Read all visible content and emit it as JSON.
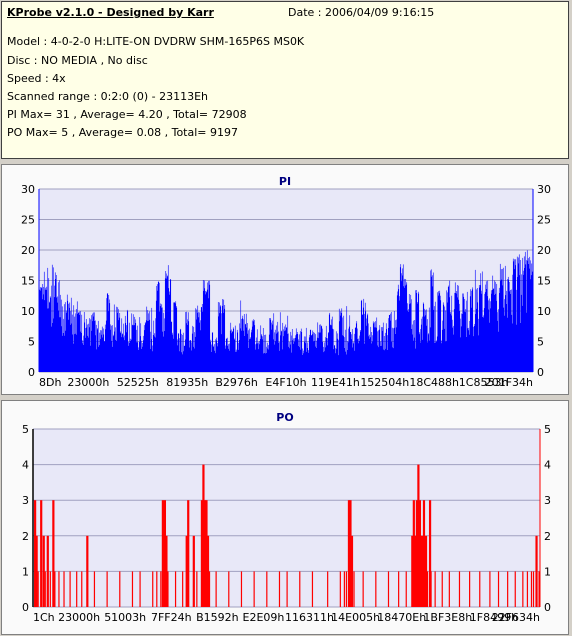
{
  "info": {
    "title": "KProbe v2.1.0 - Designed by Karr",
    "date": "Date : 2006/04/09 9:16:15",
    "lines": [
      "Model : 4-0-2-0 H:LITE-ON DVDRW SHM-165P6S MS0K",
      "Disc : NO MEDIA , No disc",
      "Speed : 4x",
      "Scanned range : 0:2:0 (0) - 23113Eh",
      "PI Max= 31 , Average= 4.20 , Total= 72908",
      "PO Max= 5 , Average= 0.08 , Total= 9197"
    ]
  },
  "colors": {
    "pi": "#0000ff",
    "po": "#ff0000",
    "plot_bg": "#e8e8f8",
    "grid": "#a0a0c0",
    "title": "#000080"
  },
  "chart_data": [
    {
      "type": "bar",
      "title": "PI",
      "ylim": [
        0,
        30
      ],
      "yticks": [
        0,
        5,
        10,
        15,
        20,
        25,
        30
      ],
      "x_tick_labels": [
        "8Dh",
        "23000h",
        "52525h",
        "81935h",
        "B2976h",
        "E4F10h",
        "119E41h",
        "152504h",
        "18C488h",
        "1C8553h",
        "201F34h"
      ],
      "grid": true,
      "max": 31,
      "profile": [
        [
          0,
          9
        ],
        [
          2,
          13
        ],
        [
          4,
          11
        ],
        [
          6,
          8
        ],
        [
          9,
          7
        ],
        [
          12,
          6
        ],
        [
          15,
          6
        ],
        [
          18,
          7
        ],
        [
          21,
          6
        ],
        [
          23,
          6
        ],
        [
          25,
          8
        ],
        [
          26,
          12
        ],
        [
          27,
          7
        ],
        [
          29,
          5
        ],
        [
          32,
          6
        ],
        [
          33,
          8
        ],
        [
          34,
          5
        ],
        [
          37,
          5
        ],
        [
          40,
          6
        ],
        [
          42,
          7
        ],
        [
          44,
          5
        ],
        [
          46,
          5
        ],
        [
          48,
          6
        ],
        [
          51,
          5
        ],
        [
          53,
          5
        ],
        [
          56,
          5
        ],
        [
          59,
          5
        ],
        [
          62,
          5
        ],
        [
          65,
          6
        ],
        [
          68,
          5
        ],
        [
          70,
          6
        ],
        [
          72,
          7
        ],
        [
          73,
          10
        ],
        [
          74,
          7
        ],
        [
          76,
          6
        ],
        [
          78,
          7
        ],
        [
          80,
          8
        ],
        [
          82,
          8
        ],
        [
          84,
          9
        ],
        [
          86,
          9
        ],
        [
          88,
          10
        ],
        [
          90,
          10
        ],
        [
          92,
          10
        ],
        [
          94,
          10
        ],
        [
          96,
          11
        ],
        [
          98,
          12
        ],
        [
          100,
          14
        ]
      ],
      "spikes": [
        [
          0.4,
          14
        ],
        [
          1.2,
          15
        ],
        [
          1.8,
          12
        ],
        [
          3.5,
          13
        ],
        [
          6,
          11
        ],
        [
          8,
          12
        ],
        [
          11,
          10
        ],
        [
          14,
          13
        ],
        [
          16,
          11
        ],
        [
          19,
          10
        ],
        [
          22,
          11
        ],
        [
          24,
          15
        ],
        [
          24.6,
          12
        ],
        [
          25.8,
          18
        ],
        [
          26.3,
          16
        ],
        [
          27.5,
          12
        ],
        [
          30,
          10
        ],
        [
          32,
          11
        ],
        [
          33.5,
          16
        ],
        [
          34.2,
          15
        ],
        [
          36.5,
          12
        ],
        [
          37.3,
          12
        ],
        [
          39,
          8
        ],
        [
          41,
          9
        ],
        [
          43,
          7
        ],
        [
          45,
          7
        ],
        [
          47,
          9
        ],
        [
          50,
          8
        ],
        [
          52,
          7
        ],
        [
          55,
          7
        ],
        [
          57,
          8
        ],
        [
          59,
          10
        ],
        [
          61,
          11
        ],
        [
          63,
          7
        ],
        [
          65.5,
          12
        ],
        [
          66.3,
          10
        ],
        [
          68,
          9
        ],
        [
          71,
          11
        ],
        [
          72.8,
          15
        ],
        [
          73.4,
          18
        ],
        [
          74.1,
          17
        ],
        [
          75,
          13
        ],
        [
          76.5,
          14
        ],
        [
          78,
          12
        ],
        [
          79.5,
          17
        ],
        [
          81,
          14
        ],
        [
          82.8,
          15
        ],
        [
          84.5,
          16
        ],
        [
          86,
          13
        ],
        [
          87.5,
          14
        ],
        [
          89.4,
          17
        ],
        [
          90.5,
          15
        ],
        [
          92,
          16
        ],
        [
          93.6,
          18
        ],
        [
          95.1,
          16
        ],
        [
          96.2,
          19
        ],
        [
          97.1,
          20
        ],
        [
          98.2,
          21
        ],
        [
          99,
          20
        ],
        [
          99.6,
          19
        ]
      ]
    },
    {
      "type": "bar",
      "title": "PO",
      "ylim": [
        0,
        5
      ],
      "yticks": [
        0,
        1,
        2,
        3,
        4,
        5
      ],
      "x_tick_labels": [
        "1Ch",
        "23000h",
        "51003h",
        "7FF24h",
        "B1592h",
        "E2E09h",
        "116311h",
        "14E005h",
        "18470Eh",
        "1BF3E8h",
        "1F8499h",
        "22F634h"
      ],
      "grid": true,
      "max": 5,
      "bars": [
        [
          0.2,
          3
        ],
        [
          0.5,
          2
        ],
        [
          0.9,
          1
        ],
        [
          1.4,
          3
        ],
        [
          1.9,
          2
        ],
        [
          2.3,
          1
        ],
        [
          2.7,
          2
        ],
        [
          3.3,
          1
        ],
        [
          3.8,
          3
        ],
        [
          4.2,
          1
        ],
        [
          5,
          1
        ],
        [
          6,
          1
        ],
        [
          7.2,
          1
        ],
        [
          8.5,
          1
        ],
        [
          9.5,
          1
        ],
        [
          10.5,
          2
        ],
        [
          12,
          1
        ],
        [
          14.5,
          1
        ],
        [
          17,
          1
        ],
        [
          19.5,
          1
        ],
        [
          21,
          1
        ],
        [
          23.5,
          1
        ],
        [
          24.3,
          1
        ],
        [
          25.1,
          1
        ],
        [
          25.4,
          3
        ],
        [
          25.8,
          3
        ],
        [
          26.1,
          2
        ],
        [
          26.5,
          1
        ],
        [
          28,
          1
        ],
        [
          29.4,
          1
        ],
        [
          30.1,
          2
        ],
        [
          30.4,
          3
        ],
        [
          31.5,
          2
        ],
        [
          32.2,
          1
        ],
        [
          33.1,
          3
        ],
        [
          33.4,
          4
        ],
        [
          33.7,
          3
        ],
        [
          34,
          3
        ],
        [
          34.3,
          2
        ],
        [
          34.7,
          1
        ],
        [
          36,
          1
        ],
        [
          38.5,
          1
        ],
        [
          41,
          1
        ],
        [
          43.5,
          1
        ],
        [
          46,
          1
        ],
        [
          48.5,
          1
        ],
        [
          50,
          1
        ],
        [
          52.5,
          1
        ],
        [
          55,
          1
        ],
        [
          58,
          1
        ],
        [
          60.5,
          1
        ],
        [
          61.3,
          1
        ],
        [
          61.7,
          1
        ],
        [
          62.1,
          3
        ],
        [
          62.4,
          3
        ],
        [
          62.7,
          2
        ],
        [
          63.2,
          1
        ],
        [
          65,
          1
        ],
        [
          67.5,
          1
        ],
        [
          70,
          1
        ],
        [
          72,
          1
        ],
        [
          73.5,
          1
        ],
        [
          74.6,
          2
        ],
        [
          74.9,
          3
        ],
        [
          75.2,
          2
        ],
        [
          75.5,
          3
        ],
        [
          75.8,
          4
        ],
        [
          76.1,
          3
        ],
        [
          76.5,
          2
        ],
        [
          76.9,
          3
        ],
        [
          77.3,
          2
        ],
        [
          77.7,
          1
        ],
        [
          78.1,
          3
        ],
        [
          78.4,
          1
        ],
        [
          79.2,
          1
        ],
        [
          80.6,
          1
        ],
        [
          82,
          1
        ],
        [
          84,
          1
        ],
        [
          86,
          1
        ],
        [
          88,
          1
        ],
        [
          90,
          1
        ],
        [
          91.7,
          1
        ],
        [
          93.5,
          1
        ],
        [
          95,
          1
        ],
        [
          96.5,
          1
        ],
        [
          97.4,
          1
        ],
        [
          98.2,
          1
        ],
        [
          98.6,
          1
        ],
        [
          99.1,
          2
        ],
        [
          99.7,
          1
        ]
      ]
    }
  ]
}
